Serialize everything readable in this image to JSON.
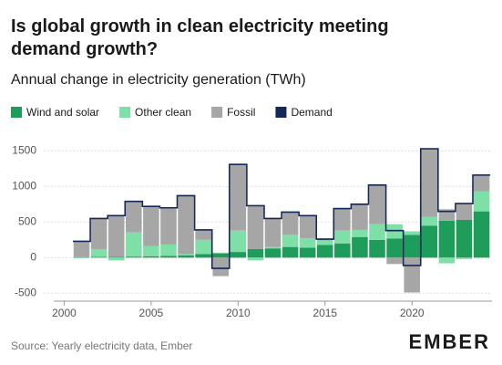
{
  "chart_data": {
    "type": "stacked-bar",
    "title": "Is global growth in clean electricity meeting demand growth?",
    "subtitle": "Annual change in electricity generation (TWh)",
    "source": "Source: Yearly electricity data, Ember",
    "brand": "EMBER",
    "x": [
      2001,
      2002,
      2003,
      2004,
      2005,
      2006,
      2007,
      2008,
      2009,
      2010,
      2011,
      2012,
      2013,
      2014,
      2015,
      2016,
      2017,
      2018,
      2019,
      2020,
      2021,
      2022,
      2023,
      2024
    ],
    "series": [
      {
        "name": "Wind and solar",
        "color": "#1e9c5a",
        "values": [
          5,
          10,
          10,
          15,
          20,
          25,
          30,
          50,
          60,
          80,
          120,
          130,
          150,
          140,
          180,
          200,
          290,
          250,
          270,
          320,
          450,
          520,
          530,
          650
        ]
      },
      {
        "name": "Other clean",
        "color": "#7ee0a6",
        "values": [
          -5,
          110,
          -40,
          340,
          140,
          160,
          20,
          200,
          10,
          300,
          -40,
          20,
          170,
          130,
          60,
          180,
          100,
          220,
          200,
          50,
          120,
          -80,
          -20,
          280
        ]
      },
      {
        "name": "Fossil",
        "color": "#a6a6a6",
        "values": [
          220,
          430,
          590,
          440,
          560,
          520,
          820,
          140,
          -260,
          930,
          600,
          400,
          320,
          320,
          30,
          310,
          360,
          550,
          -90,
          -490,
          950,
          160,
          230,
          240
        ]
      },
      {
        "name": "Demand",
        "color": "#14285a",
        "kind": "step",
        "values": [
          230,
          550,
          590,
          790,
          720,
          700,
          870,
          390,
          -150,
          1310,
          730,
          550,
          640,
          590,
          260,
          690,
          750,
          1020,
          380,
          -110,
          1530,
          650,
          760,
          1160
        ]
      }
    ],
    "xlim": [
      1999.4,
      2024.6
    ],
    "xticks": [
      2000,
      2005,
      2010,
      2015,
      2020
    ],
    "ylim": [
      -560,
      1620
    ],
    "yticks": [
      -500,
      0,
      500,
      1000,
      1500
    ],
    "grid": true
  }
}
